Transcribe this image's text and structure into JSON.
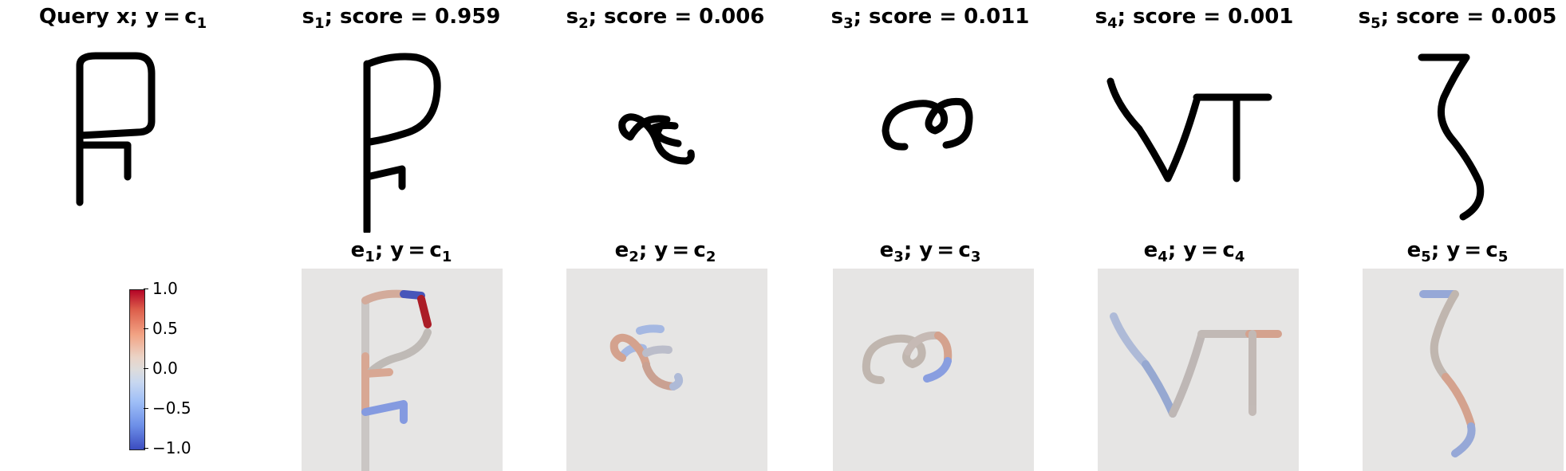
{
  "top_titles": [
    {
      "pre": "Query x; y = c",
      "sub": "1",
      "post": ""
    },
    {
      "pre": "s",
      "sub": "1",
      "post": "; score = 0.959"
    },
    {
      "pre": "s",
      "sub": "2",
      "post": "; score = 0.006"
    },
    {
      "pre": "s",
      "sub": "3",
      "post": "; score = 0.011"
    },
    {
      "pre": "s",
      "sub": "4",
      "post": "; score = 0.001"
    },
    {
      "pre": "s",
      "sub": "5",
      "post": "; score = 0.005"
    }
  ],
  "bottom_titles": [
    {
      "pre": "e",
      "sub": "1",
      "mid": "; y = c",
      "sub2": "1"
    },
    {
      "pre": "e",
      "sub": "2",
      "mid": "; y = c",
      "sub2": "2"
    },
    {
      "pre": "e",
      "sub": "3",
      "mid": "; y = c",
      "sub2": "3"
    },
    {
      "pre": "e",
      "sub": "4",
      "mid": "; y = c",
      "sub2": "4"
    },
    {
      "pre": "e",
      "sub": "5",
      "mid": "; y = c",
      "sub2": "5"
    }
  ],
  "colorbar": {
    "ticks": [
      "1.0",
      "0.5",
      "0.0",
      "−0.5",
      "−1.0"
    ],
    "colormap": "coolwarm",
    "min": -1.0,
    "max": 1.0
  },
  "colors": {
    "stroke": "#000000",
    "neutral": "#b9b5b2",
    "warm": "#d39b85",
    "warm_strong": "#a8131d",
    "cool": "#7f97e0",
    "cool_strong": "#3f4fb8",
    "background_expl": "#e6e5e4"
  }
}
